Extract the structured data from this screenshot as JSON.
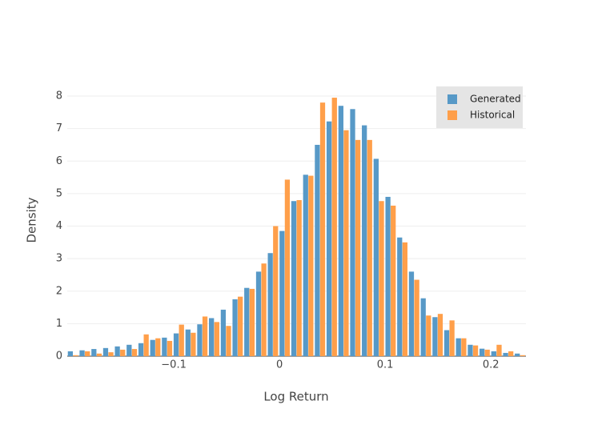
{
  "chart_data": {
    "type": "histogram",
    "x_label": "Log Return",
    "y_label": "Density",
    "bins": [
      -0.2008,
      -0.1897,
      -0.1785,
      -0.1674,
      -0.1563,
      -0.1452,
      -0.134,
      -0.1229,
      -0.1118,
      -0.1007,
      -0.0895,
      -0.0784,
      -0.0673,
      -0.0561,
      -0.045,
      -0.0339,
      -0.0227,
      -0.0116,
      -0.0005,
      0.0106,
      0.0218,
      0.0329,
      0.044,
      0.0552,
      0.0663,
      0.0774,
      0.0885,
      0.0997,
      0.1108,
      0.1219,
      0.1331,
      0.1442,
      0.1553,
      0.1664,
      0.1776,
      0.1887,
      0.1998,
      0.211,
      0.2221,
      0.2332
    ],
    "series": [
      {
        "name": "Generated",
        "color": "#5799c7",
        "values": [
          0.15,
          0.18,
          0.22,
          0.25,
          0.3,
          0.35,
          0.4,
          0.5,
          0.57,
          0.7,
          0.82,
          0.98,
          1.17,
          1.43,
          1.75,
          2.1,
          2.6,
          3.17,
          3.85,
          4.77,
          5.58,
          6.5,
          7.22,
          7.7,
          7.6,
          7.1,
          6.07,
          4.9,
          3.65,
          2.6,
          1.78,
          1.2,
          0.8,
          0.55,
          0.35,
          0.23,
          0.15,
          0.1,
          0.08
        ]
      },
      {
        "name": "Historical",
        "color": "#ff9f4a",
        "values": [
          0.03,
          0.15,
          0.08,
          0.12,
          0.2,
          0.22,
          0.67,
          0.55,
          0.47,
          0.97,
          0.72,
          1.22,
          1.05,
          0.93,
          1.83,
          2.07,
          2.85,
          4.0,
          5.43,
          4.8,
          5.55,
          7.8,
          7.95,
          6.95,
          6.65,
          6.65,
          4.77,
          4.63,
          3.5,
          2.35,
          1.25,
          1.3,
          1.1,
          0.55,
          0.33,
          0.2,
          0.35,
          0.15,
          0.03
        ]
      }
    ],
    "xlim": [
      -0.2008,
      0.2332
    ],
    "xticks": [
      {
        "value": -0.1,
        "label": "−0.1"
      },
      0,
      0.1,
      0.2
    ],
    "ylim": [
      0,
      8.37
    ],
    "yticks": [
      0,
      1,
      2,
      3,
      4,
      5,
      6,
      7,
      8
    ],
    "grid": true,
    "legend": "top-right"
  }
}
